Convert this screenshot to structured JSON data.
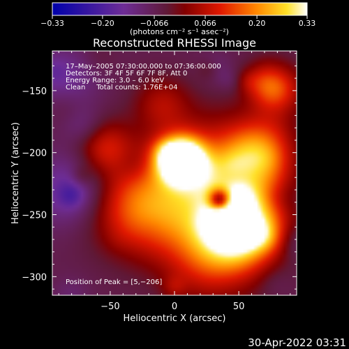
{
  "chart_data": {
    "type": "heatmap",
    "title": "Reconstructed RHESSI Image",
    "xlabel": "Heliocentric X (arcsec)",
    "ylabel": "Heliocentric Y (arcsec)",
    "xlim": [
      -95,
      95
    ],
    "ylim": [
      -315,
      -118
    ],
    "x_ticks": [
      -50,
      0,
      50
    ],
    "x_tick_labels": [
      "−50",
      "0",
      "50"
    ],
    "y_ticks": [
      -150,
      -200,
      -250,
      -300
    ],
    "y_tick_labels": [
      "−150",
      "−200",
      "−250",
      "−300"
    ],
    "colorbar": {
      "ticks": [
        -0.33,
        -0.2,
        -0.066,
        0.066,
        0.2,
        0.33
      ],
      "tick_labels": [
        "−0.33",
        "−0.20",
        "−0.066",
        "0.066",
        "0.20",
        "0.33"
      ],
      "range": [
        -0.33,
        0.33
      ],
      "units_label": "(photons cm⁻² s⁻¹ asec⁻²)"
    },
    "annotations": [
      "17–May–2005 07:30:00.000 to 07:36:00.000",
      "Detectors: 3F 4F 5F 6F 7F 8F, Att 0",
      "Energy Range: 3.0 – 6.0 keV",
      "Clean     Total counts: 1.76E+04"
    ],
    "peak_label": "Position of Peak = [5,−206]",
    "blobs": [
      {
        "x": 5,
        "y": -206,
        "sigma": 12,
        "amp": 0.55
      },
      {
        "x": 52,
        "y": -258,
        "sigma": 20,
        "amp": 0.4
      },
      {
        "x": 25,
        "y": -230,
        "sigma": 35,
        "amp": 0.28
      },
      {
        "x": 65,
        "y": -200,
        "sigma": 18,
        "amp": 0.22
      },
      {
        "x": -30,
        "y": -245,
        "sigma": 25,
        "amp": 0.18
      },
      {
        "x": -55,
        "y": -195,
        "sigma": 15,
        "amp": 0.14
      },
      {
        "x": 80,
        "y": -150,
        "sigma": 15,
        "amp": 0.14
      },
      {
        "x": -10,
        "y": -160,
        "sigma": 15,
        "amp": 0.1
      },
      {
        "x": 30,
        "y": -285,
        "sigma": 25,
        "amp": 0.15
      },
      {
        "x": 35,
        "y": -238,
        "sigma": 6,
        "amp": -0.35
      },
      {
        "x": -80,
        "y": -230,
        "sigma": 20,
        "amp": -0.12
      },
      {
        "x": -85,
        "y": -140,
        "sigma": 18,
        "amp": -0.08
      }
    ]
  },
  "footer_timestamp": "30-Apr-2022 03:31"
}
